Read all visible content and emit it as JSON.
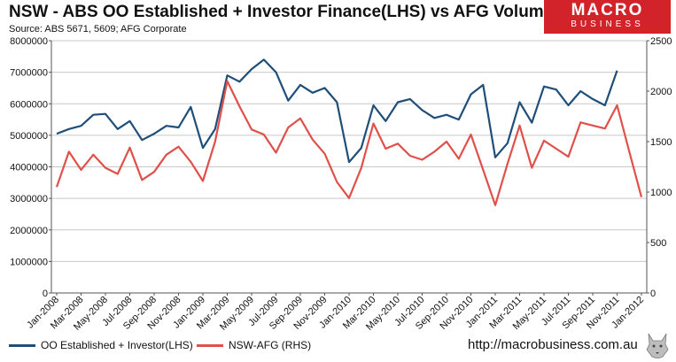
{
  "title": "NSW - ABS OO Established + Investor Finance(LHS) vs AFG Volume(RHS)",
  "source": "Source: ABS 5671, 5609; AFG Corporate",
  "brand": {
    "line1": "MACRO",
    "line2": "BUSINESS",
    "color": "#d3232a"
  },
  "url": "http://macrobusiness.com.au",
  "chart_data": {
    "type": "line",
    "x": [
      "Jan-2008",
      "Feb-2008",
      "Mar-2008",
      "Apr-2008",
      "May-2008",
      "Jun-2008",
      "Jul-2008",
      "Aug-2008",
      "Sep-2008",
      "Oct-2008",
      "Nov-2008",
      "Dec-2008",
      "Jan-2009",
      "Feb-2009",
      "Mar-2009",
      "Apr-2009",
      "May-2009",
      "Jun-2009",
      "Jul-2009",
      "Aug-2009",
      "Sep-2009",
      "Oct-2009",
      "Nov-2009",
      "Dec-2009",
      "Jan-2010",
      "Feb-2010",
      "Mar-2010",
      "Apr-2010",
      "May-2010",
      "Jun-2010",
      "Jul-2010",
      "Aug-2010",
      "Sep-2010",
      "Oct-2010",
      "Nov-2010",
      "Dec-2010",
      "Jan-2011",
      "Feb-2011",
      "Mar-2011",
      "Apr-2011",
      "May-2011",
      "Jun-2011",
      "Jul-2011",
      "Aug-2011",
      "Sep-2011",
      "Oct-2011",
      "Nov-2011",
      "Dec-2011",
      "Jan-2012"
    ],
    "x_tick_labels": [
      "Jan-2008",
      "Mar-2008",
      "May-2008",
      "Jul-2008",
      "Sep-2008",
      "Nov-2008",
      "Jan-2009",
      "Mar-2009",
      "May-2009",
      "Jul-2009",
      "Sep-2009",
      "Nov-2009",
      "Jan-2010",
      "Mar-2010",
      "May-2010",
      "Jul-2010",
      "Sep-2010",
      "Nov-2010",
      "Jan-2011",
      "Mar-2011",
      "May-2011",
      "Jul-2011",
      "Sep-2011",
      "Nov-2011",
      "Jan-2012"
    ],
    "y_left": {
      "min": 0,
      "max": 8000000,
      "ticks": [
        0,
        1000000,
        2000000,
        3000000,
        4000000,
        5000000,
        6000000,
        7000000,
        8000000
      ]
    },
    "y_right": {
      "min": 0,
      "max": 2500,
      "ticks": [
        0,
        500,
        1000,
        1500,
        2000,
        2500
      ]
    },
    "grid": "horizontal",
    "legend_position": "bottom-left",
    "series": [
      {
        "name": "OO Established + Investor(LHS)",
        "axis": "left",
        "color": "#1f4e79",
        "values": [
          5050000,
          5200000,
          5300000,
          5650000,
          5680000,
          5200000,
          5450000,
          4850000,
          5050000,
          5300000,
          5250000,
          5900000,
          4600000,
          5200000,
          6900000,
          6700000,
          7100000,
          7400000,
          7000000,
          6100000,
          6600000,
          6350000,
          6500000,
          6050000,
          4150000,
          4600000,
          5950000,
          5450000,
          6050000,
          6150000,
          5800000,
          5550000,
          5650000,
          5500000,
          6300000,
          6600000,
          4300000,
          4750000,
          6050000,
          5400000,
          6550000,
          6450000,
          5950000,
          6400000,
          6150000,
          5950000,
          7050000,
          null,
          null
        ]
      },
      {
        "name": "NSW-AFG (RHS)",
        "axis": "right",
        "color": "#e0504b",
        "values": [
          1050,
          1400,
          1220,
          1370,
          1240,
          1180,
          1440,
          1120,
          1200,
          1370,
          1450,
          1300,
          1110,
          1500,
          2100,
          1850,
          1620,
          1570,
          1390,
          1640,
          1730,
          1520,
          1380,
          1100,
          940,
          1240,
          1680,
          1430,
          1480,
          1360,
          1320,
          1400,
          1500,
          1330,
          1570,
          1220,
          870,
          1280,
          1660,
          1240,
          1510,
          1430,
          1350,
          1690,
          1660,
          1630,
          1860,
          1400,
          950
        ]
      }
    ]
  }
}
